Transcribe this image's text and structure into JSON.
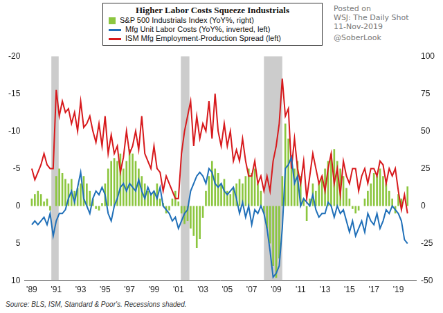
{
  "chart_data": {
    "type": "bar",
    "title": "Higher Labor Costs Squeeze Industrials",
    "annotations": [
      "Posted on",
      "WSJ: The Daily Shot",
      "11-Nov-2019",
      "@SoberLook"
    ],
    "source": "Source: BLS, ISM, Standard & Poor's. Recessions shaded.",
    "grid": false,
    "x": [
      1989,
      1989.25,
      1989.5,
      1989.75,
      1990,
      1990.25,
      1990.5,
      1990.75,
      1991,
      1991.25,
      1991.5,
      1991.75,
      1992,
      1992.25,
      1992.5,
      1992.75,
      1993,
      1993.25,
      1993.5,
      1993.75,
      1994,
      1994.25,
      1994.5,
      1994.75,
      1995,
      1995.25,
      1995.5,
      1995.75,
      1996,
      1996.25,
      1996.5,
      1996.75,
      1997,
      1997.25,
      1997.5,
      1997.75,
      1998,
      1998.25,
      1998.5,
      1998.75,
      1999,
      1999.25,
      1999.5,
      1999.75,
      2000,
      2000.25,
      2000.5,
      2000.75,
      2001,
      2001.25,
      2001.5,
      2001.75,
      2002,
      2002.25,
      2002.5,
      2002.75,
      2003,
      2003.25,
      2003.5,
      2003.75,
      2004,
      2004.25,
      2004.5,
      2004.75,
      2005,
      2005.25,
      2005.5,
      2005.75,
      2006,
      2006.25,
      2006.5,
      2006.75,
      2007,
      2007.25,
      2007.5,
      2007.75,
      2008,
      2008.25,
      2008.5,
      2008.75,
      2009,
      2009.25,
      2009.5,
      2009.75,
      2010,
      2010.25,
      2010.5,
      2010.75,
      2011,
      2011.25,
      2011.5,
      2011.75,
      2012,
      2012.25,
      2012.5,
      2012.75,
      2013,
      2013.25,
      2013.5,
      2013.75,
      2014,
      2014.25,
      2014.5,
      2014.75,
      2015,
      2015.25,
      2015.5,
      2015.75,
      2016,
      2016.25,
      2016.5,
      2016.75,
      2017,
      2017.25,
      2017.5,
      2017.75,
      2018,
      2018.25,
      2018.5,
      2018.75,
      2019,
      2019.25,
      2019.5,
      2019.75
    ],
    "xlim": [
      1988.4,
      2020.5
    ],
    "xticks": [
      {
        "value": 1989,
        "label": "'89"
      },
      {
        "value": 1991,
        "label": "'91"
      },
      {
        "value": 1993,
        "label": "'93"
      },
      {
        "value": 1995,
        "label": "'95"
      },
      {
        "value": 1997,
        "label": "'97"
      },
      {
        "value": 1999,
        "label": "'99"
      },
      {
        "value": 2001,
        "label": "'01"
      },
      {
        "value": 2003,
        "label": "'03"
      },
      {
        "value": 2005,
        "label": "'05"
      },
      {
        "value": 2007,
        "label": "'07"
      },
      {
        "value": 2009,
        "label": "'09"
      },
      {
        "value": 2011,
        "label": "'11"
      },
      {
        "value": 2013,
        "label": "'13"
      },
      {
        "value": 2015,
        "label": "'15"
      },
      {
        "value": 2017,
        "label": "'17"
      },
      {
        "value": 2019,
        "label": "'19"
      }
    ],
    "ylim": [
      10,
      -20
    ],
    "yticks": [
      -20,
      -15,
      -10,
      -5,
      0,
      5,
      10
    ],
    "y2lim": [
      -50,
      100
    ],
    "y2ticks": [
      -50,
      -25,
      0,
      25,
      50,
      75,
      100
    ],
    "recessions": [
      [
        1990.6,
        1991.2
      ],
      [
        2001.2,
        2001.9
      ],
      [
        2008.0,
        2009.5
      ]
    ],
    "series": [
      {
        "name": "S&P 500 Industrials Index (YoY%, right)",
        "type": "bar",
        "axis": "y2",
        "color": "#8cc63f",
        "values": [
          5,
          8,
          10,
          8,
          3,
          5,
          -3,
          0,
          20,
          25,
          22,
          18,
          15,
          18,
          10,
          12,
          15,
          20,
          15,
          10,
          5,
          -2,
          -3,
          2,
          15,
          25,
          30,
          32,
          30,
          35,
          25,
          30,
          38,
          35,
          30,
          25,
          20,
          15,
          10,
          8,
          10,
          15,
          5,
          2,
          -5,
          -3,
          5,
          10,
          3,
          -5,
          -12,
          -10,
          -15,
          -20,
          -28,
          -22,
          -8,
          10,
          20,
          30,
          25,
          22,
          15,
          18,
          10,
          8,
          12,
          15,
          18,
          15,
          20,
          25,
          22,
          25,
          15,
          10,
          -5,
          -15,
          -25,
          -40,
          -48,
          -35,
          20,
          55,
          45,
          30,
          25,
          30,
          20,
          5,
          -10,
          5,
          15,
          10,
          15,
          20,
          25,
          30,
          35,
          38,
          30,
          25,
          20,
          12,
          5,
          -2,
          -5,
          -3,
          0,
          5,
          10,
          15,
          22,
          20,
          25,
          20,
          15,
          10,
          5,
          -5,
          8,
          5,
          0,
          13
        ]
      },
      {
        "name": "Mfg Unit Labor Costs (YoY%, inverted, left)",
        "type": "line",
        "color": "#1f6fb8",
        "values": [
          2.5,
          2,
          2.5,
          2,
          1.5,
          2.5,
          1,
          4,
          2,
          1,
          1,
          0.5,
          -1,
          -2,
          -0.5,
          -2.5,
          -4.5,
          -1,
          0,
          1,
          -1,
          -2,
          -1.5,
          -2.5,
          -1.5,
          1,
          2,
          0,
          -1,
          -2.5,
          -3,
          -2,
          -3,
          -2.5,
          -2,
          -3.5,
          -2,
          -1,
          -2.5,
          -1.5,
          -2,
          -1,
          -2.5,
          0,
          0.5,
          1,
          2,
          1.5,
          3,
          2,
          1,
          0.5,
          -2,
          -3,
          -4,
          -4.5,
          -4,
          -3,
          -5,
          -4.5,
          -3,
          -2.5,
          -3,
          -2,
          -1.5,
          -2,
          -2.5,
          -1,
          1,
          -0.5,
          1.5,
          0,
          2.5,
          0.5,
          1,
          0,
          1,
          3,
          6,
          9.5,
          9,
          8,
          3,
          -5,
          -5.5,
          -6.5,
          -3,
          -4,
          0,
          -1,
          -0.5,
          0,
          -1.5,
          0.5,
          1.5,
          1,
          1,
          -0.5,
          0,
          1.5,
          0,
          1,
          0.5,
          2,
          3.5,
          2,
          4,
          3,
          2,
          3.5,
          1,
          2,
          2.5,
          1,
          3,
          2,
          0.5,
          1,
          0,
          0.5,
          1,
          2,
          4.5,
          5
        ]
      },
      {
        "name": "ISM Mfg Employment-Production Spread (left)",
        "type": "line",
        "color": "#d7191c",
        "values": [
          -5,
          -3.5,
          -4.5,
          -5.5,
          -7,
          -5.5,
          -5,
          -5,
          -15.5,
          -12,
          -14,
          -12.5,
          -13,
          -11,
          -12.5,
          -10,
          -14,
          -10.5,
          -11,
          -12,
          -10,
          -8.5,
          -11,
          -8,
          -12,
          -7,
          -9.5,
          -7,
          -8,
          -4.5,
          -6.5,
          -10,
          -7,
          -8,
          -10,
          -7.5,
          -12,
          -7,
          -6,
          -5,
          -8,
          -5,
          -4.5,
          -2,
          -4,
          -3,
          -2,
          -1,
          -1,
          -7,
          -10,
          -12,
          -14,
          -8,
          -12,
          -9,
          -11,
          -10,
          -14,
          -9,
          -15,
          -10,
          -8,
          -11,
          -8,
          -10,
          -6,
          -7.5,
          -6,
          -9,
          -6,
          -4,
          -4,
          -6,
          -3,
          -4,
          -2,
          -4,
          -2,
          -6,
          -8,
          -11,
          -17,
          -12,
          -13,
          -5,
          -9,
          -5,
          -3,
          -6,
          -1,
          -4,
          -7,
          -5,
          -3,
          -4,
          -2,
          -5,
          -7,
          -3,
          -5,
          -1.5,
          -6,
          -4,
          -3,
          -5,
          -5,
          -2,
          -4,
          -5,
          -3,
          -5,
          -5,
          -4,
          -6,
          -5.5,
          -3,
          -5,
          -4,
          -5,
          -2,
          0.5,
          -1.5,
          1
        ]
      }
    ]
  }
}
